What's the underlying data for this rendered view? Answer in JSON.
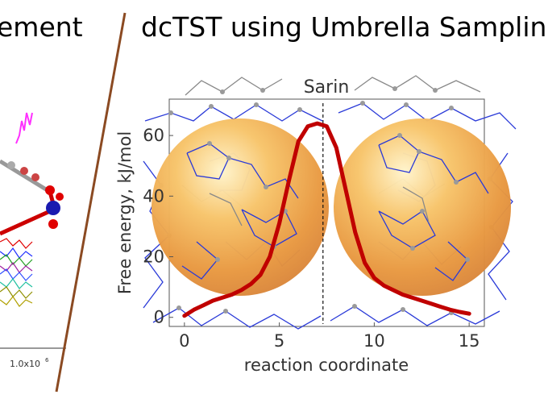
{
  "panels": {
    "left_title": "ement",
    "left_axis_tick": "1.0x10",
    "left_axis_tick_exp": "6",
    "right_title": "dcTST using Umbrella Sampling"
  },
  "chart_data": {
    "type": "line",
    "title": "Sarin",
    "xlabel": "reaction coordinate",
    "ylabel": "Free energy, kJ/mol",
    "xlim": [
      -0.8,
      15.8
    ],
    "ylim": [
      -3,
      72
    ],
    "xticks": [
      0,
      5,
      10,
      15
    ],
    "yticks": [
      0,
      20,
      40,
      60
    ],
    "vline_x": 7.3,
    "series": [
      {
        "color": "#c00000",
        "x": [
          0,
          0.5,
          1,
          1.5,
          2,
          2.5,
          3,
          3.5,
          4,
          4.5,
          5,
          5.5,
          6,
          6.5,
          7,
          7.5,
          8,
          8.5,
          9,
          9.5,
          10,
          10.5,
          11,
          11.5,
          12,
          12.5,
          13,
          13.5,
          14,
          14.5,
          15
        ],
        "y": [
          0.5,
          2.5,
          4,
          5.5,
          6.5,
          7.5,
          9,
          11,
          14,
          20,
          31,
          45,
          58,
          63,
          64,
          63,
          56,
          42,
          28,
          18,
          13,
          10.5,
          9,
          7.5,
          6.5,
          5.5,
          4.5,
          3.5,
          2.5,
          1.8,
          1.2
        ]
      }
    ]
  }
}
